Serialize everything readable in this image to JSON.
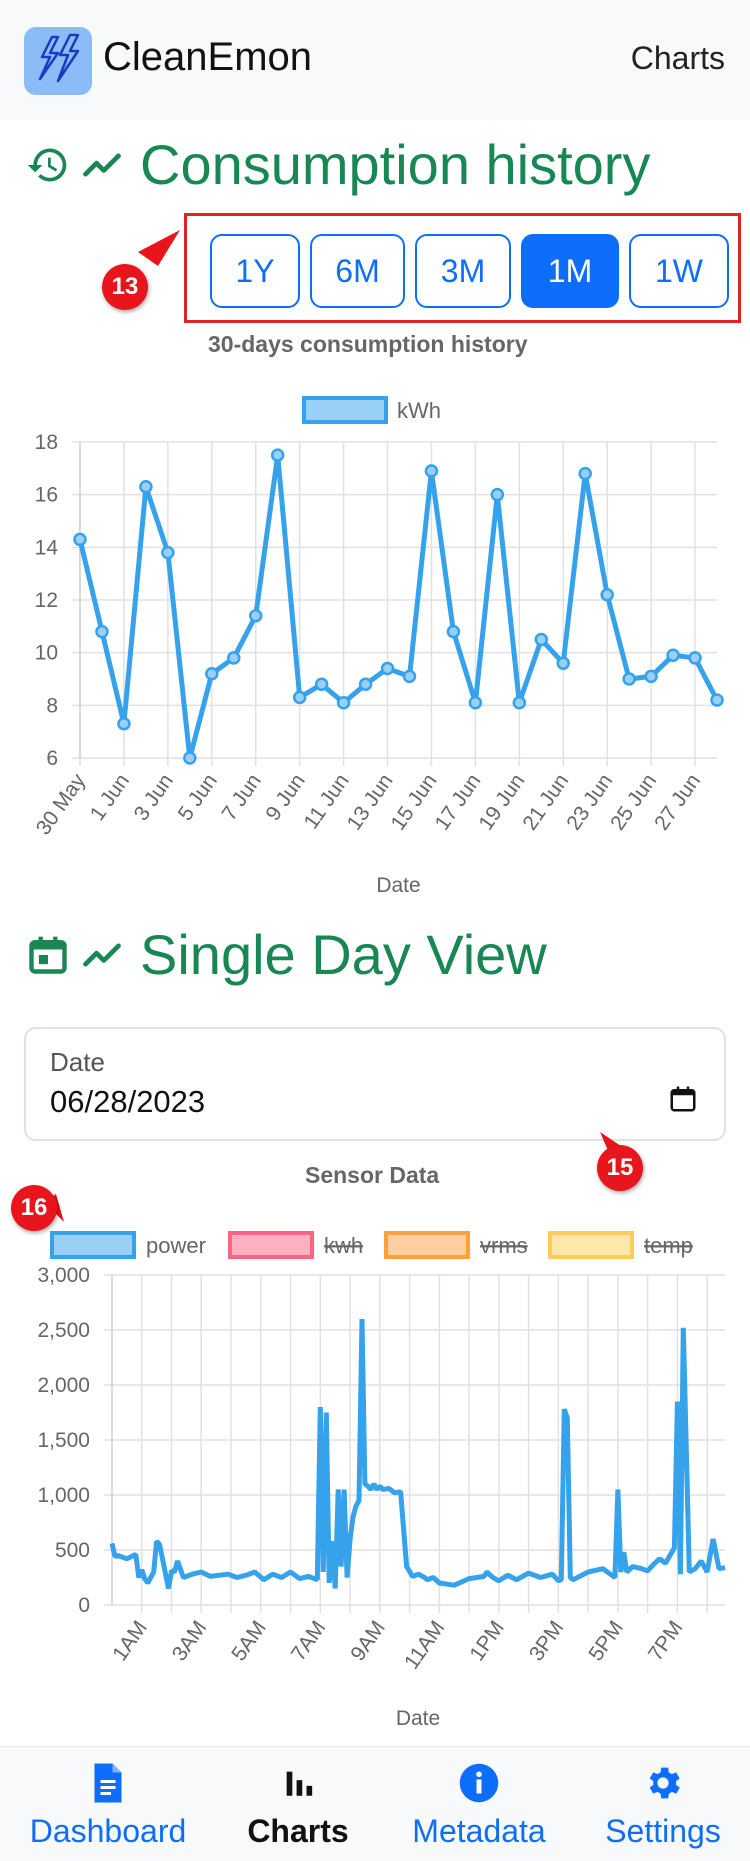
{
  "header": {
    "app_name": "CleanEmon",
    "nav_link": "Charts"
  },
  "history": {
    "title": "Consumption history",
    "ranges": [
      "1Y",
      "6M",
      "3M",
      "1M",
      "1W"
    ],
    "active_range": "1M",
    "chart_title": "30-days consumption history"
  },
  "annotations": {
    "a13": "13",
    "a15": "15",
    "a16": "16"
  },
  "single_day": {
    "title": "Single Day View",
    "date_label": "Date",
    "date_value": "06/28/2023",
    "chart_title": "Sensor Data"
  },
  "colors": {
    "brand_green": "#198754",
    "primary": "#0d6efd",
    "line_blue": "#36a2eb",
    "annotation_red": "#e8151c"
  },
  "chart_data": [
    {
      "type": "line",
      "title": "30-days consumption history",
      "xlabel": "Date",
      "ylabel": "",
      "ylim": [
        6,
        18
      ],
      "yticks": [
        6,
        8,
        10,
        12,
        14,
        16,
        18
      ],
      "x": [
        "30 May",
        "31 May",
        "1 Jun",
        "2 Jun",
        "3 Jun",
        "4 Jun",
        "5 Jun",
        "6 Jun",
        "7 Jun",
        "8 Jun",
        "9 Jun",
        "10 Jun",
        "11 Jun",
        "12 Jun",
        "13 Jun",
        "14 Jun",
        "15 Jun",
        "16 Jun",
        "17 Jun",
        "18 Jun",
        "19 Jun",
        "20 Jun",
        "21 Jun",
        "22 Jun",
        "23 Jun",
        "24 Jun",
        "25 Jun",
        "26 Jun",
        "27 Jun",
        "28 Jun"
      ],
      "tick_labels": [
        "30 May",
        "1 Jun",
        "3 Jun",
        "5 Jun",
        "7 Jun",
        "9 Jun",
        "11 Jun",
        "13 Jun",
        "15 Jun",
        "17 Jun",
        "19 Jun",
        "21 Jun",
        "23 Jun",
        "25 Jun",
        "27 Jun"
      ],
      "series": [
        {
          "name": "kWh",
          "values": [
            14.3,
            10.8,
            7.3,
            16.3,
            13.8,
            6.0,
            9.2,
            9.8,
            11.4,
            17.5,
            8.3,
            8.8,
            8.1,
            8.8,
            9.4,
            9.1,
            16.9,
            10.8,
            8.1,
            16.0,
            8.1,
            10.5,
            9.6,
            16.8,
            12.2,
            9.0,
            9.1,
            9.9,
            9.8,
            8.2
          ]
        }
      ],
      "legend": "top-center",
      "grid": true
    },
    {
      "type": "line",
      "title": "Sensor Data",
      "xlabel": "Date",
      "ylabel": "",
      "ylim": [
        0,
        3000
      ],
      "yticks": [
        0,
        500,
        1000,
        1500,
        2000,
        2500,
        3000
      ],
      "ytick_labels": [
        "0",
        "500",
        "1,000",
        "1,500",
        "2,000",
        "2,500",
        "3,000"
      ],
      "tick_labels": [
        "1AM",
        "3AM",
        "5AM",
        "7AM",
        "9AM",
        "11AM",
        "1PM",
        "3PM",
        "5PM",
        "7PM"
      ],
      "xlim_hours": [
        0,
        20.6
      ],
      "series": [
        {
          "name": "power",
          "hidden": false,
          "color": "#36a2eb",
          "x_hours": [
            0.0,
            0.1,
            0.2,
            0.5,
            0.8,
            0.9,
            1.0,
            1.1,
            1.2,
            1.4,
            1.5,
            1.6,
            1.9,
            2.0,
            2.1,
            2.2,
            2.4,
            2.7,
            3.0,
            3.3,
            3.6,
            3.9,
            4.2,
            4.5,
            4.8,
            5.1,
            5.4,
            5.7,
            6.0,
            6.3,
            6.6,
            6.9,
            7.0,
            7.1,
            7.2,
            7.3,
            7.4,
            7.5,
            7.6,
            7.7,
            7.8,
            7.9,
            8.0,
            8.1,
            8.2,
            8.3,
            8.4,
            8.5,
            8.6,
            8.7,
            8.8,
            8.9,
            9.0,
            9.1,
            9.3,
            9.5,
            9.7,
            9.9,
            10.1,
            10.3,
            10.5,
            10.6,
            10.7,
            10.8,
            11.0,
            11.5,
            12.0,
            12.5,
            12.6,
            12.8,
            13.0,
            13.3,
            13.6,
            14.0,
            14.4,
            14.8,
            15.0,
            15.1,
            15.2,
            15.3,
            15.4,
            15.5,
            16.0,
            16.5,
            16.9,
            17.0,
            17.1,
            17.2,
            17.3,
            17.5,
            17.8,
            18.0,
            18.2,
            18.4,
            18.6,
            18.9,
            19.0,
            19.1,
            19.2,
            19.4,
            19.6,
            19.8,
            20.0,
            20.2,
            20.4,
            20.6
          ],
          "values": [
            560,
            440,
            450,
            420,
            460,
            250,
            320,
            240,
            200,
            300,
            580,
            550,
            150,
            310,
            300,
            400,
            250,
            280,
            300,
            260,
            270,
            280,
            250,
            270,
            300,
            230,
            280,
            250,
            300,
            240,
            260,
            230,
            1800,
            300,
            1750,
            200,
            580,
            150,
            1050,
            350,
            1050,
            250,
            600,
            800,
            900,
            950,
            2600,
            1100,
            1080,
            1050,
            1100,
            1050,
            1080,
            1050,
            1060,
            1020,
            1030,
            350,
            260,
            280,
            250,
            230,
            240,
            250,
            200,
            180,
            240,
            260,
            300,
            250,
            220,
            270,
            230,
            290,
            250,
            280,
            220,
            230,
            1780,
            1700,
            250,
            230,
            300,
            330,
            250,
            1050,
            300,
            480,
            300,
            350,
            330,
            310,
            370,
            420,
            380,
            520,
            1850,
            280,
            2520,
            300,
            330,
            400,
            300,
            600,
            330,
            340
          ]
        },
        {
          "name": "kwh",
          "hidden": true,
          "color": "#ff6384",
          "values": []
        },
        {
          "name": "vrms",
          "hidden": true,
          "color": "#ff9f40",
          "values": []
        },
        {
          "name": "temp",
          "hidden": true,
          "color": "#ffcd56",
          "values": []
        }
      ],
      "legend": "top-center",
      "grid": true
    }
  ],
  "bottom_nav": {
    "items": [
      {
        "label": "Dashboard",
        "icon": "document-icon"
      },
      {
        "label": "Charts",
        "icon": "bar-chart-icon"
      },
      {
        "label": "Metadata",
        "icon": "info-icon"
      },
      {
        "label": "Settings",
        "icon": "gear-icon"
      }
    ],
    "active": "Charts"
  }
}
